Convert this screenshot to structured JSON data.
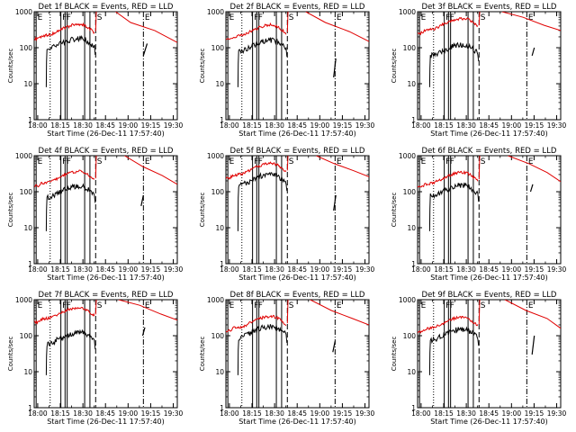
{
  "chart_data": {
    "type": "line",
    "layout": "3x3 grid",
    "shared": {
      "xlabel": "Start Time (26-Dec-11 17:57:40)",
      "ylabel": "Counts/sec",
      "x_ticks": [
        "18:00",
        "18:15",
        "18:30",
        "18:45",
        "19:00",
        "19:15",
        "19:30"
      ],
      "x_tick_minutes": [
        2.33,
        17.33,
        32.33,
        47.33,
        62.33,
        77.33,
        92.33
      ],
      "xlim_minutes": [
        0,
        95
      ],
      "y_scale": "log",
      "ylim": [
        1,
        1000
      ],
      "y_ticks": [
        "1",
        "10",
        "100",
        "1000"
      ],
      "y_tick_values": [
        1,
        10,
        100,
        1000
      ],
      "series_colors": {
        "events": "#000000",
        "lld": "#e00000"
      },
      "markers": [
        {
          "label": "E",
          "minute": 1.3,
          "style": "solid"
        },
        {
          "label": "",
          "minute": 10.6,
          "style": "dotted"
        },
        {
          "label": "F",
          "minute": 17.7,
          "style": "solid"
        },
        {
          "label": "F",
          "minute": 20.5,
          "style": "solid"
        },
        {
          "label": "",
          "minute": 21.9,
          "style": "solid"
        },
        {
          "label": "",
          "minute": 33.5,
          "style": "solid"
        },
        {
          "label": "",
          "minute": 37.0,
          "style": "solid"
        },
        {
          "label": "S",
          "minute": 40.8,
          "style": "dashed"
        },
        {
          "label": "E",
          "minute": 72.5,
          "style": "dashdot"
        }
      ]
    },
    "panels": [
      {
        "title": "Det 1f BLACK = Events, RED = LLD",
        "events_base": 90,
        "lld_base": 220,
        "events_after": [
          {
            "x": 72.5,
            "y": 60
          },
          {
            "x": 75,
            "y": 130
          }
        ],
        "lld_after": [
          {
            "x": 54,
            "y": 1000
          },
          {
            "x": 64,
            "y": 500
          },
          {
            "x": 80,
            "y": 300
          },
          {
            "x": 95,
            "y": 140
          }
        ]
      },
      {
        "title": "Det 2f BLACK = Events, RED = LLD",
        "events_base": 80,
        "lld_base": 210,
        "events_after": [
          {
            "x": 71.5,
            "y": 15
          },
          {
            "x": 73,
            "y": 50
          }
        ],
        "lld_after": [
          {
            "x": 53,
            "y": 1000
          },
          {
            "x": 66,
            "y": 500
          },
          {
            "x": 82,
            "y": 280
          },
          {
            "x": 95,
            "y": 150
          }
        ]
      },
      {
        "title": "Det 3f BLACK = Events, RED = LLD",
        "events_base": 60,
        "lld_base": 320,
        "events_after": [
          {
            "x": 76,
            "y": 60
          },
          {
            "x": 77.5,
            "y": 100
          }
        ],
        "lld_after": [
          {
            "x": 56,
            "y": 1000
          },
          {
            "x": 70,
            "y": 700
          },
          {
            "x": 84,
            "y": 420
          },
          {
            "x": 95,
            "y": 300
          }
        ]
      },
      {
        "title": "Det 4f BLACK = Events, RED = LLD",
        "events_base": 70,
        "lld_base": 180,
        "events_after": [
          {
            "x": 71,
            "y": 40
          },
          {
            "x": 72.5,
            "y": 80
          }
        ],
        "lld_after": [
          {
            "x": 60,
            "y": 1000
          },
          {
            "x": 72,
            "y": 500
          },
          {
            "x": 85,
            "y": 280
          },
          {
            "x": 95,
            "y": 160
          }
        ]
      },
      {
        "title": "Det 5f BLACK = Events, RED = LLD",
        "events_base": 150,
        "lld_base": 300,
        "events_after": [
          {
            "x": 71.5,
            "y": 30
          },
          {
            "x": 73,
            "y": 80
          }
        ],
        "lld_after": [
          {
            "x": 60,
            "y": 1000
          },
          {
            "x": 72,
            "y": 600
          },
          {
            "x": 85,
            "y": 380
          },
          {
            "x": 95,
            "y": 260
          }
        ]
      },
      {
        "title": "Det 6f BLACK = Events, RED = LLD",
        "events_base": 75,
        "lld_base": 170,
        "events_after": [
          {
            "x": 75,
            "y": 100
          },
          {
            "x": 76.5,
            "y": 160
          }
        ],
        "lld_after": [
          {
            "x": 60,
            "y": 1000
          },
          {
            "x": 74,
            "y": 600
          },
          {
            "x": 86,
            "y": 340
          },
          {
            "x": 95,
            "y": 190
          }
        ]
      },
      {
        "title": "Det 7f BLACK = Events, RED = LLD",
        "events_base": 60,
        "lld_base": 300,
        "events_after": [
          {
            "x": 72,
            "y": 100
          },
          {
            "x": 73.5,
            "y": 170
          }
        ],
        "lld_after": [
          {
            "x": 56,
            "y": 1000
          },
          {
            "x": 70,
            "y": 700
          },
          {
            "x": 84,
            "y": 400
          },
          {
            "x": 95,
            "y": 270
          }
        ]
      },
      {
        "title": "Det 8f BLACK = Events, RED = LLD",
        "events_base": 90,
        "lld_base": 170,
        "events_after": [
          {
            "x": 71,
            "y": 35
          },
          {
            "x": 72.5,
            "y": 70
          }
        ],
        "lld_after": [
          {
            "x": 56,
            "y": 1000
          },
          {
            "x": 70,
            "y": 500
          },
          {
            "x": 84,
            "y": 300
          },
          {
            "x": 95,
            "y": 200
          }
        ]
      },
      {
        "title": "Det 9f BLACK = Events, RED = LLD",
        "events_base": 75,
        "lld_base": 160,
        "events_after": [
          {
            "x": 76,
            "y": 30
          },
          {
            "x": 77.5,
            "y": 100
          }
        ],
        "lld_after": [
          {
            "x": 58,
            "y": 1000
          },
          {
            "x": 72,
            "y": 500
          },
          {
            "x": 86,
            "y": 300
          },
          {
            "x": 95,
            "y": 160
          }
        ]
      }
    ],
    "profile_shape": {
      "x": [
        2.5,
        5,
        8,
        11,
        14,
        17,
        20,
        23,
        26,
        29,
        32,
        34,
        37,
        40
      ],
      "rel": [
        0.8,
        0.95,
        1.0,
        1.05,
        1.2,
        1.4,
        1.6,
        1.8,
        1.95,
        2.05,
        2.0,
        1.85,
        1.5,
        1.2
      ]
    }
  }
}
